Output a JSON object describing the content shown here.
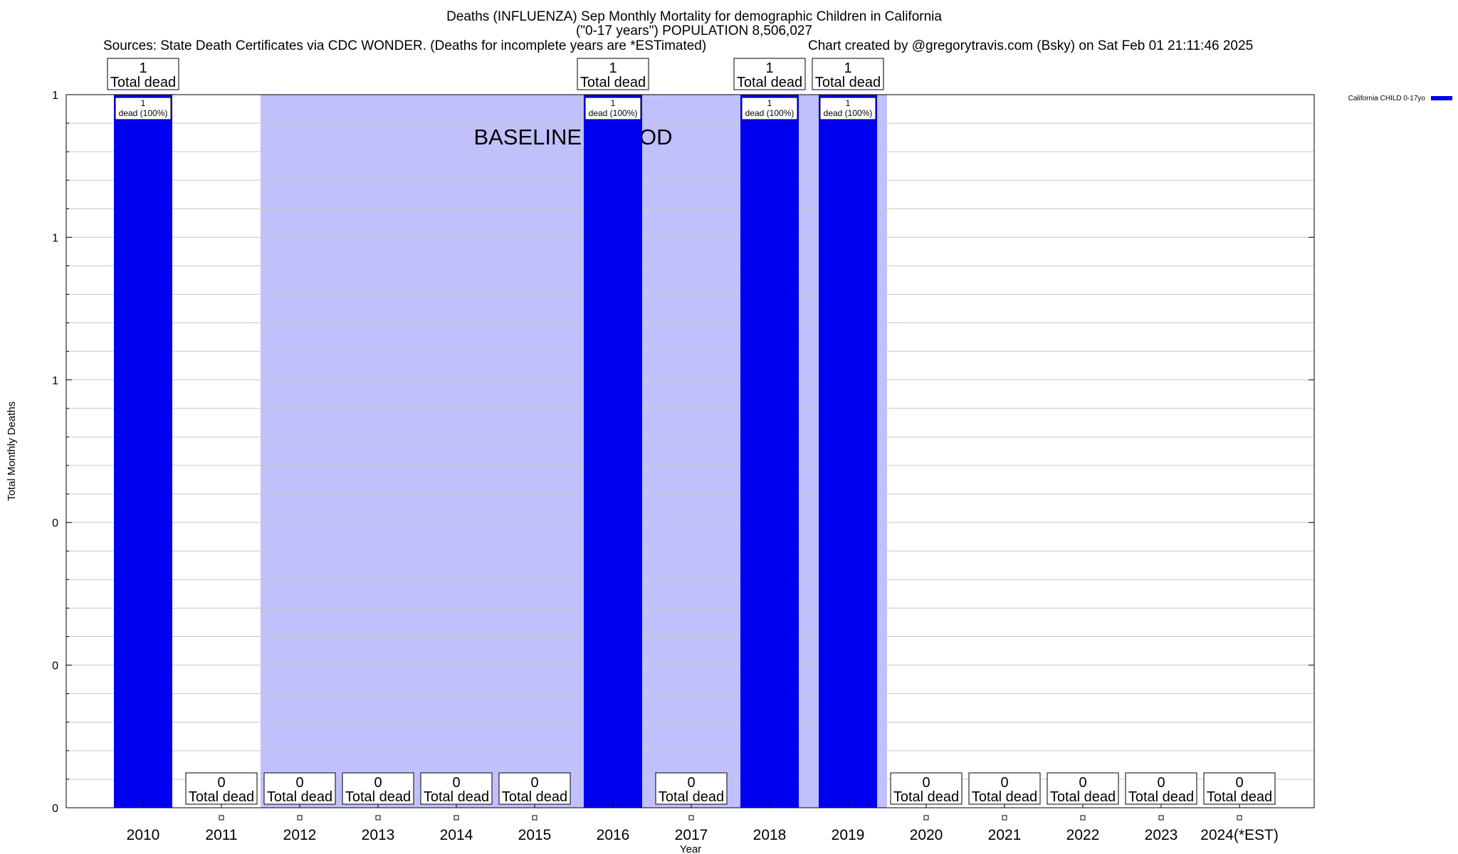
{
  "title": "Deaths (INFLUENZA) Sep Monthly Mortality for demographic Children in California",
  "subtitle": "(\"0-17 years\") POPULATION 8,506,027",
  "source_note": "Sources: State Death Certificates via CDC WONDER. (Deaths for incomplete years are *ESTimated)",
  "credit": "Chart created by @gregorytravis.com (Bsky) on Sat Feb 01 21:11:46 2025",
  "chart_data": {
    "type": "bar",
    "xlabel": "Year",
    "ylabel": "Total Monthly Deaths",
    "ylim": [
      0,
      1
    ],
    "y_tick_labels": [
      "0",
      "0",
      "0",
      "1",
      "1",
      "1"
    ],
    "grid": true,
    "legend_position": "top-right",
    "categories": [
      "2010",
      "2011",
      "2012",
      "2013",
      "2014",
      "2015",
      "2016",
      "2017",
      "2018",
      "2019",
      "2020",
      "2021",
      "2022",
      "2023",
      "2024(*EST)"
    ],
    "series": [
      {
        "name": "California CHILD 0-17yo",
        "color": "#0000f0",
        "values": [
          1,
          0,
          0,
          0,
          0,
          0,
          1,
          0,
          1,
          1,
          0,
          0,
          0,
          0,
          0
        ]
      }
    ],
    "top_labels": {
      "value_text": [
        "1",
        "0",
        "0",
        "0",
        "0",
        "0",
        "1",
        "0",
        "1",
        "1",
        "0",
        "0",
        "0",
        "0",
        "0"
      ],
      "caption": "Total dead"
    },
    "inner_labels": {
      "value_text": [
        "1",
        "1",
        "1",
        "1"
      ],
      "caption": "dead (100%)",
      "categories": [
        "2010",
        "2016",
        "2018",
        "2019"
      ]
    },
    "baseline_period": {
      "label": "BASELINE PERIOD",
      "from": "2012",
      "to": "2019",
      "color": "#c0c0fc"
    }
  }
}
